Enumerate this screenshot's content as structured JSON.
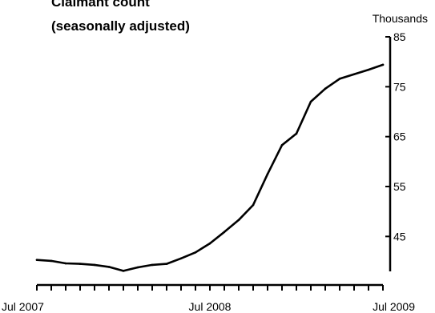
{
  "chart_data": {
    "type": "line",
    "title": "Claimant count",
    "subtitle": "(seasonally adjusted)",
    "ylabel": "Thousands",
    "xlabel": "",
    "y_axis_side": "right",
    "ylim": [
      38,
      85
    ],
    "yticks": [
      45,
      55,
      65,
      75,
      85
    ],
    "xticks": [
      {
        "label": "Jul 2007",
        "month": 0
      },
      {
        "label": "Jul 2008",
        "month": 12
      },
      {
        "label": "Jul 2009",
        "month": 24
      }
    ],
    "x_minor_tick_count": 25,
    "series": [
      {
        "name": "",
        "x": [
          "Jul 2007",
          "Aug 2007",
          "Sep 2007",
          "Oct 2007",
          "Nov 2007",
          "Dec 2007",
          "Jan 2008",
          "Feb 2008",
          "Mar 2008",
          "Apr 2008",
          "May 2008",
          "Jun 2008",
          "Jul 2008",
          "Aug 2008",
          "Sep 2008",
          "Oct 2008",
          "Nov 2008",
          "Dec 2008",
          "Jan 2009",
          "Feb 2009",
          "Mar 2009",
          "Apr 2009",
          "May 2009",
          "Jun 2009",
          "Jul 2009"
        ],
        "values": [
          40.3,
          40.1,
          39.6,
          39.5,
          39.3,
          38.9,
          38.1,
          38.8,
          39.3,
          39.5,
          40.6,
          41.8,
          43.6,
          45.9,
          48.3,
          51.3,
          57.5,
          63.3,
          65.6,
          72.0,
          74.6,
          76.6,
          77.5,
          78.4,
          79.4
        ]
      }
    ]
  }
}
